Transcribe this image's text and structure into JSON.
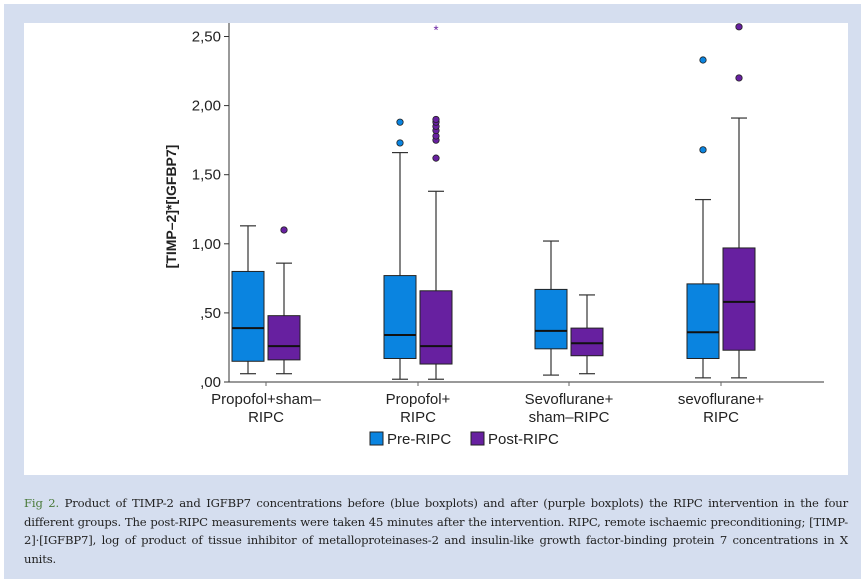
{
  "figure": {
    "caption_label": "Fig 2.",
    "caption_text": " Product of TIMP-2 and IGFBP7 concentrations before (blue boxplots) and after (purple boxplots) the RIPC intervention in the four different groups. The post-RIPC measurements were taken 45 minutes after the intervention. RIPC, remote ischaemic preconditioning; [TIMP-2]·[IGFBP7], log of product of tissue inhibitor of metalloproteinases-2 and insulin-like growth factor-binding protein 7 concentrations in X units."
  },
  "colors": {
    "pre": "#0a84e0",
    "post": "#6720a0",
    "frame": "#d5deef",
    "caption_label": "#4a7a3a"
  },
  "chart_data": {
    "type": "boxplot",
    "title": "",
    "xlabel": "",
    "ylabel": "[TIMP–2]*[IGFBP7]",
    "ylim": [
      0,
      2.6
    ],
    "yticks": [
      0,
      0.5,
      1.0,
      1.5,
      2.0,
      2.5
    ],
    "ytick_labels": [
      ",00",
      ",50",
      "1,00",
      "1,50",
      "2,00",
      "2,50"
    ],
    "grid": false,
    "legend_position": "bottom-center",
    "categories": [
      [
        "Propofol+sham–",
        "RIPC"
      ],
      [
        "Propofol+",
        "RIPC"
      ],
      [
        "Sevoflurane+",
        "sham–RIPC"
      ],
      [
        "sevoflurane+",
        "RIPC"
      ]
    ],
    "series": [
      {
        "name": "Pre-RIPC",
        "color": "#0a84e0",
        "boxes": [
          {
            "min": 0.06,
            "q1": 0.15,
            "median": 0.39,
            "q3": 0.8,
            "max": 1.13,
            "outliers": [],
            "extremes": []
          },
          {
            "min": 0.02,
            "q1": 0.17,
            "median": 0.34,
            "q3": 0.77,
            "max": 1.66,
            "outliers": [
              1.73,
              1.88
            ],
            "extremes": []
          },
          {
            "min": 0.05,
            "q1": 0.24,
            "median": 0.37,
            "q3": 0.67,
            "max": 1.02,
            "outliers": [],
            "extremes": []
          },
          {
            "min": 0.03,
            "q1": 0.17,
            "median": 0.36,
            "q3": 0.71,
            "max": 1.32,
            "outliers": [
              1.68,
              2.33
            ],
            "extremes": []
          }
        ]
      },
      {
        "name": "Post-RIPC",
        "color": "#6720a0",
        "boxes": [
          {
            "min": 0.06,
            "q1": 0.16,
            "median": 0.26,
            "q3": 0.48,
            "max": 0.86,
            "outliers": [
              1.1
            ],
            "extremes": []
          },
          {
            "min": 0.02,
            "q1": 0.13,
            "median": 0.26,
            "q3": 0.66,
            "max": 1.38,
            "outliers": [
              1.62,
              1.75,
              1.78,
              1.82,
              1.85,
              1.88,
              1.9
            ],
            "extremes": [
              2.55
            ]
          },
          {
            "min": 0.06,
            "q1": 0.19,
            "median": 0.28,
            "q3": 0.39,
            "max": 0.63,
            "outliers": [],
            "extremes": []
          },
          {
            "min": 0.03,
            "q1": 0.23,
            "median": 0.58,
            "q3": 0.97,
            "max": 1.91,
            "outliers": [
              2.2,
              2.57
            ],
            "extremes": []
          }
        ]
      }
    ],
    "legend": [
      "Pre-RIPC",
      "Post-RIPC"
    ]
  }
}
